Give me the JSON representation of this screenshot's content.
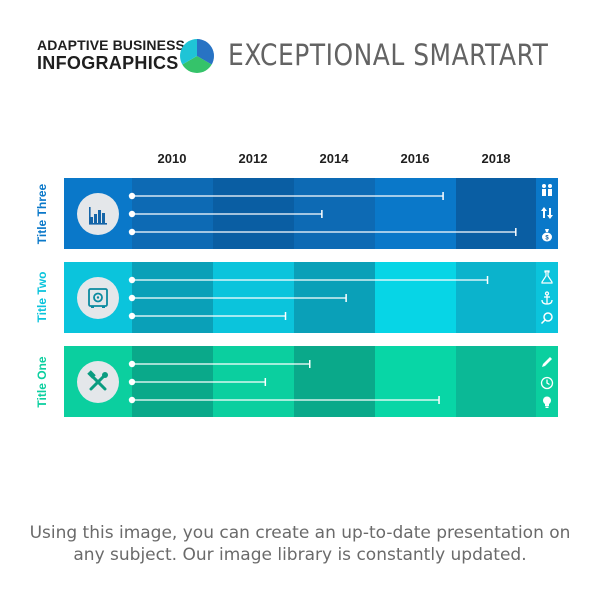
{
  "header": {
    "brand_line1": "ADAPTIVE BUSINESS",
    "brand_line2": "INFOGRAPHICS",
    "title": "EXCEPTIONAL SMARTART"
  },
  "footer": {
    "text": "Using this image, you can create an up-to-date presentation on any subject. Our image library is constantly updated."
  },
  "colors": {
    "row_blue": [
      "#0d6ab4",
      "#0a5ea3",
      "#0d6ab4",
      "#0a78c9",
      "#0a5ea3"
    ],
    "row_blue_left": "#0a78c9",
    "row_cyan": [
      "#0aa0b8",
      "#0bc4dc",
      "#0aa0b8",
      "#07d5e6",
      "#0bb3cc"
    ],
    "row_cyan_left": "#0bc4dc",
    "row_green": [
      "#0aa98a",
      "#0bcf9f",
      "#0aa98a",
      "#08d6a6",
      "#0bb996"
    ],
    "row_green_left": "#0bcf9f",
    "label_blue": "#0a78c9",
    "label_cyan": "#0bc4dc",
    "label_green": "#0bcf9f"
  },
  "chart_data": {
    "type": "bar",
    "title": "",
    "categories": [
      "Title Three",
      "Title Two",
      "Title One"
    ],
    "x_ticks": [
      "2010",
      "2012",
      "2014",
      "2016",
      "2018"
    ],
    "xlim": [
      2009,
      2019
    ],
    "series": [
      {
        "values": [
          2016.7,
          2017.8,
          2013.4
        ]
      },
      {
        "values": [
          2013.7,
          2014.3,
          2012.3
        ]
      },
      {
        "values": [
          2018.5,
          2012.8,
          2016.6
        ]
      }
    ]
  },
  "rows": [
    {
      "label": "Title Three",
      "icon": "bar-chart-icon",
      "side_icons": [
        "people-icon",
        "transfer-arrows-icon",
        "money-bag-icon"
      ]
    },
    {
      "label": "Title Two",
      "icon": "safe-icon",
      "side_icons": [
        "flask-icon",
        "anchor-icon",
        "magnifier-icon"
      ]
    },
    {
      "label": "Title One",
      "icon": "tools-icon",
      "side_icons": [
        "pencil-icon",
        "clock-icon",
        "lightbulb-icon"
      ]
    }
  ]
}
